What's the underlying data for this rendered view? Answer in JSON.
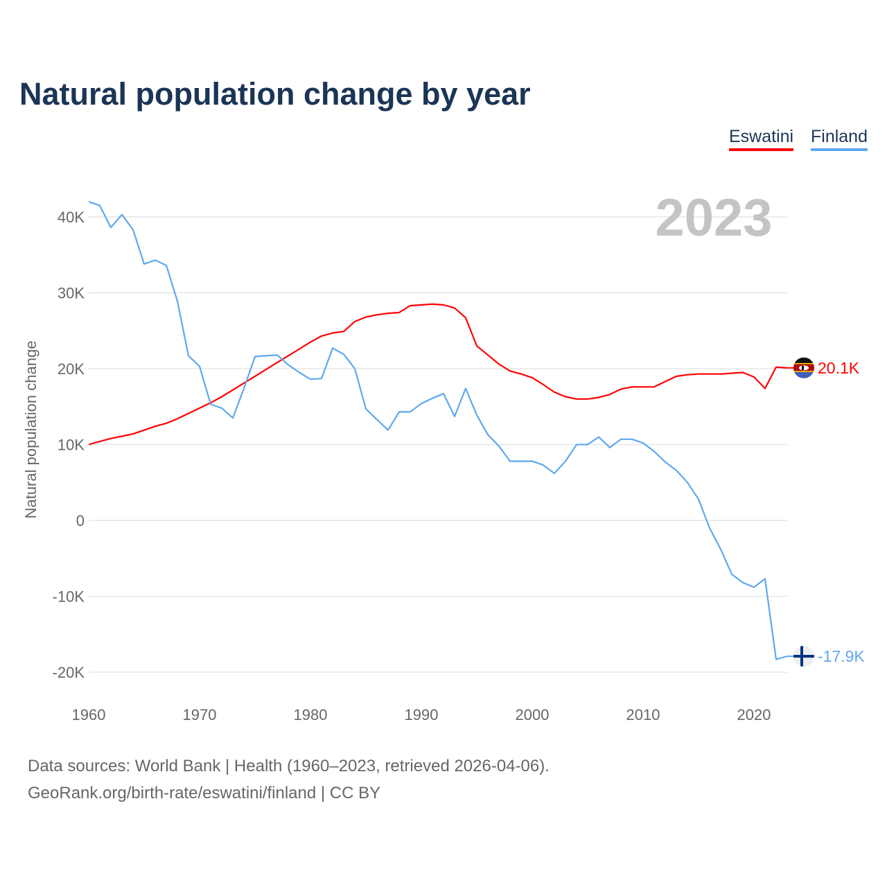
{
  "chart_data": {
    "type": "line",
    "title": "Natural population change by year",
    "ylabel": "Natural population change",
    "xlabel": "",
    "year_watermark": "2023",
    "xlim": [
      1960,
      2023
    ],
    "ylim": [
      -20000,
      40000
    ],
    "x_ticks": [
      1960,
      1970,
      1980,
      1990,
      2000,
      2010,
      2020
    ],
    "x_tick_labels": [
      "1960",
      "1970",
      "1980",
      "1990",
      "2000",
      "2010",
      "2020"
    ],
    "y_ticks": [
      -20000,
      -10000,
      0,
      10000,
      20000,
      30000,
      40000
    ],
    "y_tick_labels": [
      "-20K",
      "-10K",
      "0",
      "10K",
      "20K",
      "30K",
      "40K"
    ],
    "grid": true,
    "legend_position": "top-right",
    "x": [
      1960,
      1961,
      1962,
      1963,
      1964,
      1965,
      1966,
      1967,
      1968,
      1969,
      1970,
      1971,
      1972,
      1973,
      1974,
      1975,
      1976,
      1977,
      1978,
      1979,
      1980,
      1981,
      1982,
      1983,
      1984,
      1985,
      1986,
      1987,
      1988,
      1989,
      1990,
      1991,
      1992,
      1993,
      1994,
      1995,
      1996,
      1997,
      1998,
      1999,
      2000,
      2001,
      2002,
      2003,
      2004,
      2005,
      2006,
      2007,
      2008,
      2009,
      2010,
      2011,
      2012,
      2013,
      2014,
      2015,
      2016,
      2017,
      2018,
      2019,
      2020,
      2021,
      2022,
      2023
    ],
    "series": [
      {
        "name": "Eswatini",
        "color": "#ff0000",
        "end_label": "20.1K",
        "flag": "eswatini-flag",
        "values": [
          10000,
          10400,
          10800,
          11100,
          11400,
          11900,
          12400,
          12800,
          13400,
          14100,
          14800,
          15500,
          16300,
          17200,
          18100,
          19000,
          19900,
          20800,
          21700,
          22600,
          23500,
          24300,
          24700,
          24900,
          26200,
          26800,
          27100,
          27300,
          27400,
          28300,
          28400,
          28500,
          28400,
          28000,
          26700,
          23000,
          21800,
          20600,
          19700,
          19300,
          18800,
          17900,
          16900,
          16300,
          16000,
          16000,
          16200,
          16600,
          17300,
          17600,
          17600,
          17600,
          18300,
          19000,
          19200,
          19300,
          19300,
          19300,
          19400,
          19500,
          18900,
          17400,
          20200,
          20100
        ]
      },
      {
        "name": "Finland",
        "color": "#5ea8ee",
        "end_label": "-17.9K",
        "flag": "finland-flag",
        "values": [
          42000,
          41500,
          38600,
          40300,
          38300,
          33800,
          34300,
          33600,
          28900,
          21700,
          20300,
          15300,
          14800,
          13500,
          17400,
          21600,
          21700,
          21800,
          20500,
          19500,
          18600,
          18700,
          22700,
          21900,
          20000,
          14700,
          13300,
          11900,
          14300,
          14300,
          15400,
          16100,
          16700,
          13700,
          17400,
          13900,
          11300,
          9800,
          7800,
          7800,
          7800,
          7300,
          6200,
          7800,
          10000,
          10000,
          11000,
          9600,
          10700,
          10700,
          10200,
          9100,
          7700,
          6600,
          5000,
          2800,
          -1000,
          -3800,
          -7100,
          -8200,
          -8800,
          -7700,
          -18300,
          -17900
        ]
      }
    ]
  },
  "footer": {
    "line1": "Data sources: World Bank | Health (1960–2023, retrieved 2026-04-06).",
    "line2": "GeoRank.org/birth-rate/eswatini/finland | CC BY"
  }
}
